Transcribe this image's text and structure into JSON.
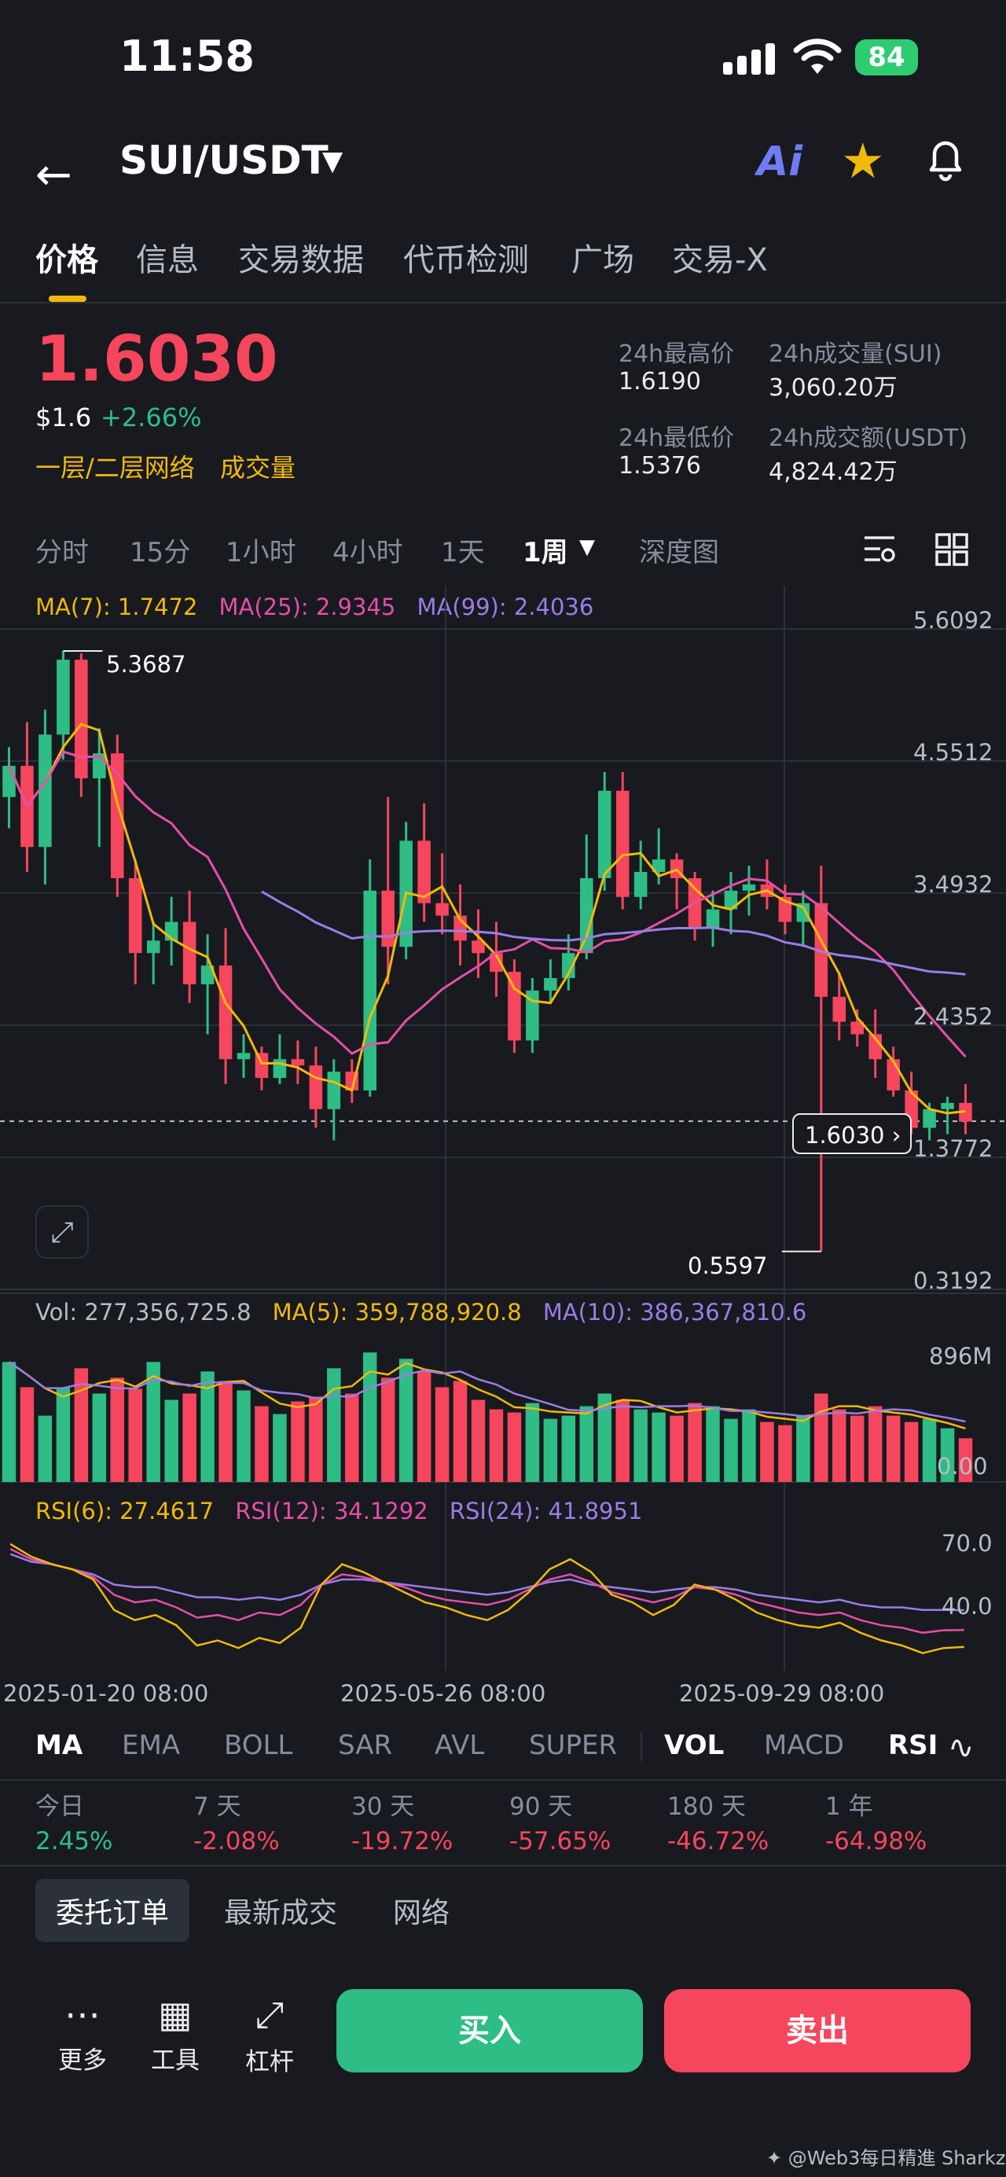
{
  "status_bar": {
    "time": "11:58",
    "battery": "84"
  },
  "header": {
    "pair": "SUI/USDT",
    "icons": [
      "back-arrow-icon",
      "ai-icon",
      "star-icon",
      "bell-icon"
    ]
  },
  "tabs": [
    "价格",
    "信息",
    "交易数据",
    "代币检测",
    "广场",
    "交易-X"
  ],
  "ticker": {
    "price": "1.6030",
    "usd": "$1.6",
    "change": "+2.66%",
    "tag1": "一层/二层网络",
    "tag2": "成交量",
    "high_label": "24h最高价",
    "high": "1.6190",
    "low_label": "24h最低价",
    "low": "1.5376",
    "vol_label": "24h成交量(SUI)",
    "vol": "3,060.20万",
    "turnover_label": "24h成交额(USDT)",
    "turnover": "4,824.42万"
  },
  "intervals": [
    "分时",
    "15分",
    "1小时",
    "4小时",
    "1天",
    "1周",
    "深度图"
  ],
  "active_interval": "1周",
  "ma_legend": {
    "ma7": "MA(7): 1.7472",
    "ma25": "MA(25): 2.9345",
    "ma99": "MA(99): 2.4036"
  },
  "vol_legend": {
    "vol": "Vol: 277,356,725.8",
    "ma5": "MA(5): 359,788,920.8",
    "ma10": "MA(10): 386,367,810.6"
  },
  "rsi_legend": {
    "rsi6": "RSI(6): 27.4617",
    "rsi12": "RSI(12): 34.1292",
    "rsi24": "RSI(24): 41.8951"
  },
  "price_axis": [
    "5.6092",
    "4.5512",
    "3.4932",
    "2.4352",
    "1.3772",
    "0.3192"
  ],
  "max_label": "5.3687",
  "min_label": "0.5597",
  "current_price_tag": "1.6030",
  "vol_axis": {
    "top": "896M",
    "bottom": "0.00"
  },
  "rsi_axis": [
    "70.0",
    "40.0"
  ],
  "dates": [
    "2025-01-20 08:00",
    "2025-05-26 08:00",
    "2025-09-29 08:00"
  ],
  "indicator_tabs": [
    "MA",
    "EMA",
    "BOLL",
    "SAR",
    "AVL",
    "SUPER",
    "VOL",
    "MACD",
    "RSI"
  ],
  "performance": [
    {
      "label": "今日",
      "value": "2.45%",
      "dir": "up"
    },
    {
      "label": "7 天",
      "value": "-2.08%",
      "dir": "down"
    },
    {
      "label": "30 天",
      "value": "-19.72%",
      "dir": "down"
    },
    {
      "label": "90 天",
      "value": "-57.65%",
      "dir": "down"
    },
    {
      "label": "180 天",
      "value": "-46.72%",
      "dir": "down"
    },
    {
      "label": "1 年",
      "value": "-64.98%",
      "dir": "down"
    }
  ],
  "order_tabs": [
    "委托订单",
    "最新成交",
    "网络"
  ],
  "tools": [
    {
      "label": "更多",
      "icon": "more-icon"
    },
    {
      "label": "工具",
      "icon": "tools-icon"
    },
    {
      "label": "杠杆",
      "icon": "leverage-icon"
    }
  ],
  "buy_label": "买入",
  "sell_label": "卖出",
  "watermark": "Web3每日精進 Sharkz",
  "colors": {
    "up": "#2ebd85",
    "down": "#f6465d",
    "accent": "#f0b90b",
    "ma7": "#f0b90b",
    "ma25": "#e44fa8",
    "ma99": "#9b7de6"
  },
  "chart_data": {
    "type": "candlestick",
    "interval": "1周",
    "price_range": [
      0.3192,
      5.6092
    ],
    "candles": [
      {
        "o": 4.2,
        "h": 4.6,
        "l": 3.95,
        "c": 4.45
      },
      {
        "o": 4.45,
        "h": 4.8,
        "l": 3.6,
        "c": 3.8
      },
      {
        "o": 3.8,
        "h": 4.9,
        "l": 3.5,
        "c": 4.7
      },
      {
        "o": 4.7,
        "h": 5.37,
        "l": 4.5,
        "c": 5.3
      },
      {
        "o": 5.3,
        "h": 5.35,
        "l": 4.2,
        "c": 4.35
      },
      {
        "o": 4.35,
        "h": 4.75,
        "l": 3.8,
        "c": 4.55
      },
      {
        "o": 4.55,
        "h": 4.7,
        "l": 3.4,
        "c": 3.55
      },
      {
        "o": 3.55,
        "h": 3.7,
        "l": 2.7,
        "c": 2.95
      },
      {
        "o": 2.95,
        "h": 3.2,
        "l": 2.7,
        "c": 3.05
      },
      {
        "o": 3.05,
        "h": 3.4,
        "l": 2.85,
        "c": 3.2
      },
      {
        "o": 3.2,
        "h": 3.45,
        "l": 2.55,
        "c": 2.7
      },
      {
        "o": 2.7,
        "h": 3.1,
        "l": 2.3,
        "c": 2.85
      },
      {
        "o": 2.85,
        "h": 3.15,
        "l": 1.9,
        "c": 2.1
      },
      {
        "o": 2.1,
        "h": 2.3,
        "l": 1.95,
        "c": 2.15
      },
      {
        "o": 2.15,
        "h": 2.2,
        "l": 1.85,
        "c": 1.95
      },
      {
        "o": 1.95,
        "h": 2.3,
        "l": 1.9,
        "c": 2.1
      },
      {
        "o": 2.1,
        "h": 2.25,
        "l": 1.9,
        "c": 2.05
      },
      {
        "o": 2.05,
        "h": 2.2,
        "l": 1.55,
        "c": 1.7
      },
      {
        "o": 1.7,
        "h": 2.1,
        "l": 1.45,
        "c": 2.0
      },
      {
        "o": 2.0,
        "h": 2.1,
        "l": 1.75,
        "c": 1.85
      },
      {
        "o": 1.85,
        "h": 3.7,
        "l": 1.8,
        "c": 3.45
      },
      {
        "o": 3.45,
        "h": 4.2,
        "l": 2.7,
        "c": 3.0
      },
      {
        "o": 3.0,
        "h": 4.0,
        "l": 2.9,
        "c": 3.85
      },
      {
        "o": 3.85,
        "h": 4.15,
        "l": 3.2,
        "c": 3.35
      },
      {
        "o": 3.35,
        "h": 3.75,
        "l": 3.1,
        "c": 3.25
      },
      {
        "o": 3.25,
        "h": 3.5,
        "l": 2.85,
        "c": 3.05
      },
      {
        "o": 3.05,
        "h": 3.3,
        "l": 2.75,
        "c": 2.95
      },
      {
        "o": 2.95,
        "h": 3.2,
        "l": 2.6,
        "c": 2.8
      },
      {
        "o": 2.8,
        "h": 2.9,
        "l": 2.15,
        "c": 2.25
      },
      {
        "o": 2.25,
        "h": 2.75,
        "l": 2.15,
        "c": 2.65
      },
      {
        "o": 2.65,
        "h": 2.9,
        "l": 2.55,
        "c": 2.75
      },
      {
        "o": 2.75,
        "h": 3.1,
        "l": 2.65,
        "c": 2.95
      },
      {
        "o": 2.95,
        "h": 3.9,
        "l": 2.9,
        "c": 3.55
      },
      {
        "o": 3.55,
        "h": 4.4,
        "l": 3.45,
        "c": 4.25
      },
      {
        "o": 4.25,
        "h": 4.4,
        "l": 3.3,
        "c": 3.4
      },
      {
        "o": 3.4,
        "h": 3.85,
        "l": 3.3,
        "c": 3.6
      },
      {
        "o": 3.6,
        "h": 3.95,
        "l": 3.5,
        "c": 3.7
      },
      {
        "o": 3.7,
        "h": 3.75,
        "l": 3.3,
        "c": 3.55
      },
      {
        "o": 3.55,
        "h": 3.6,
        "l": 3.05,
        "c": 3.15
      },
      {
        "o": 3.15,
        "h": 3.45,
        "l": 3.0,
        "c": 3.3
      },
      {
        "o": 3.3,
        "h": 3.6,
        "l": 3.1,
        "c": 3.45
      },
      {
        "o": 3.45,
        "h": 3.65,
        "l": 3.25,
        "c": 3.5
      },
      {
        "o": 3.5,
        "h": 3.7,
        "l": 3.3,
        "c": 3.4
      },
      {
        "o": 3.4,
        "h": 3.5,
        "l": 3.1,
        "c": 3.2
      },
      {
        "o": 3.2,
        "h": 3.45,
        "l": 3.0,
        "c": 3.35
      },
      {
        "o": 3.35,
        "h": 3.65,
        "l": 0.5597,
        "c": 2.6
      },
      {
        "o": 2.6,
        "h": 2.8,
        "l": 2.25,
        "c": 2.4
      },
      {
        "o": 2.4,
        "h": 2.5,
        "l": 2.2,
        "c": 2.3
      },
      {
        "o": 2.3,
        "h": 2.5,
        "l": 1.95,
        "c": 2.1
      },
      {
        "o": 2.1,
        "h": 2.2,
        "l": 1.8,
        "c": 1.85
      },
      {
        "o": 1.85,
        "h": 2.0,
        "l": 1.5,
        "c": 1.55
      },
      {
        "o": 1.55,
        "h": 1.75,
        "l": 1.45,
        "c": 1.7
      },
      {
        "o": 1.7,
        "h": 1.8,
        "l": 1.5,
        "c": 1.75
      },
      {
        "o": 1.75,
        "h": 1.9,
        "l": 1.5,
        "c": 1.6
      }
    ],
    "volumes_m": [
      760,
      600,
      420,
      600,
      720,
      560,
      660,
      590,
      760,
      520,
      560,
      700,
      640,
      580,
      480,
      430,
      510,
      540,
      720,
      560,
      820,
      660,
      780,
      700,
      600,
      640,
      520,
      460,
      440,
      500,
      400,
      420,
      480,
      560,
      520,
      460,
      440,
      420,
      500,
      480,
      400,
      460,
      380,
      360,
      420,
      560,
      460,
      420,
      480,
      420,
      380,
      400,
      340,
      277
    ],
    "rsi6": [
      68,
      63,
      60,
      58,
      54,
      42,
      38,
      40,
      36,
      28,
      30,
      27,
      31,
      29,
      35,
      52,
      60,
      57,
      53,
      49,
      45,
      43,
      40,
      38,
      42,
      49,
      58,
      62,
      57,
      48,
      45,
      40,
      44,
      52,
      50,
      46,
      41,
      38,
      36,
      35,
      37,
      33,
      30,
      28,
      25,
      27,
      27.4617
    ],
    "rsi12": [
      66,
      62,
      60,
      58,
      55,
      48,
      45,
      46,
      43,
      39,
      40,
      38,
      41,
      40,
      44,
      52,
      56,
      55,
      53,
      51,
      48,
      46,
      45,
      44,
      46,
      50,
      54,
      56,
      53,
      49,
      47,
      45,
      47,
      51,
      50,
      48,
      45,
      43,
      41,
      40,
      41,
      38,
      36,
      35,
      33,
      34,
      34.1292
    ],
    "rsi24": [
      64,
      61,
      60,
      58,
      56,
      52,
      51,
      51,
      49,
      47,
      47,
      46,
      47,
      46,
      48,
      52,
      54,
      54,
      53,
      52,
      51,
      50,
      49,
      48,
      49,
      51,
      53,
      54,
      52,
      51,
      50,
      49,
      50,
      51,
      51,
      50,
      48,
      47,
      46,
      45,
      46,
      44,
      43,
      43,
      42,
      42,
      41.8951
    ]
  }
}
